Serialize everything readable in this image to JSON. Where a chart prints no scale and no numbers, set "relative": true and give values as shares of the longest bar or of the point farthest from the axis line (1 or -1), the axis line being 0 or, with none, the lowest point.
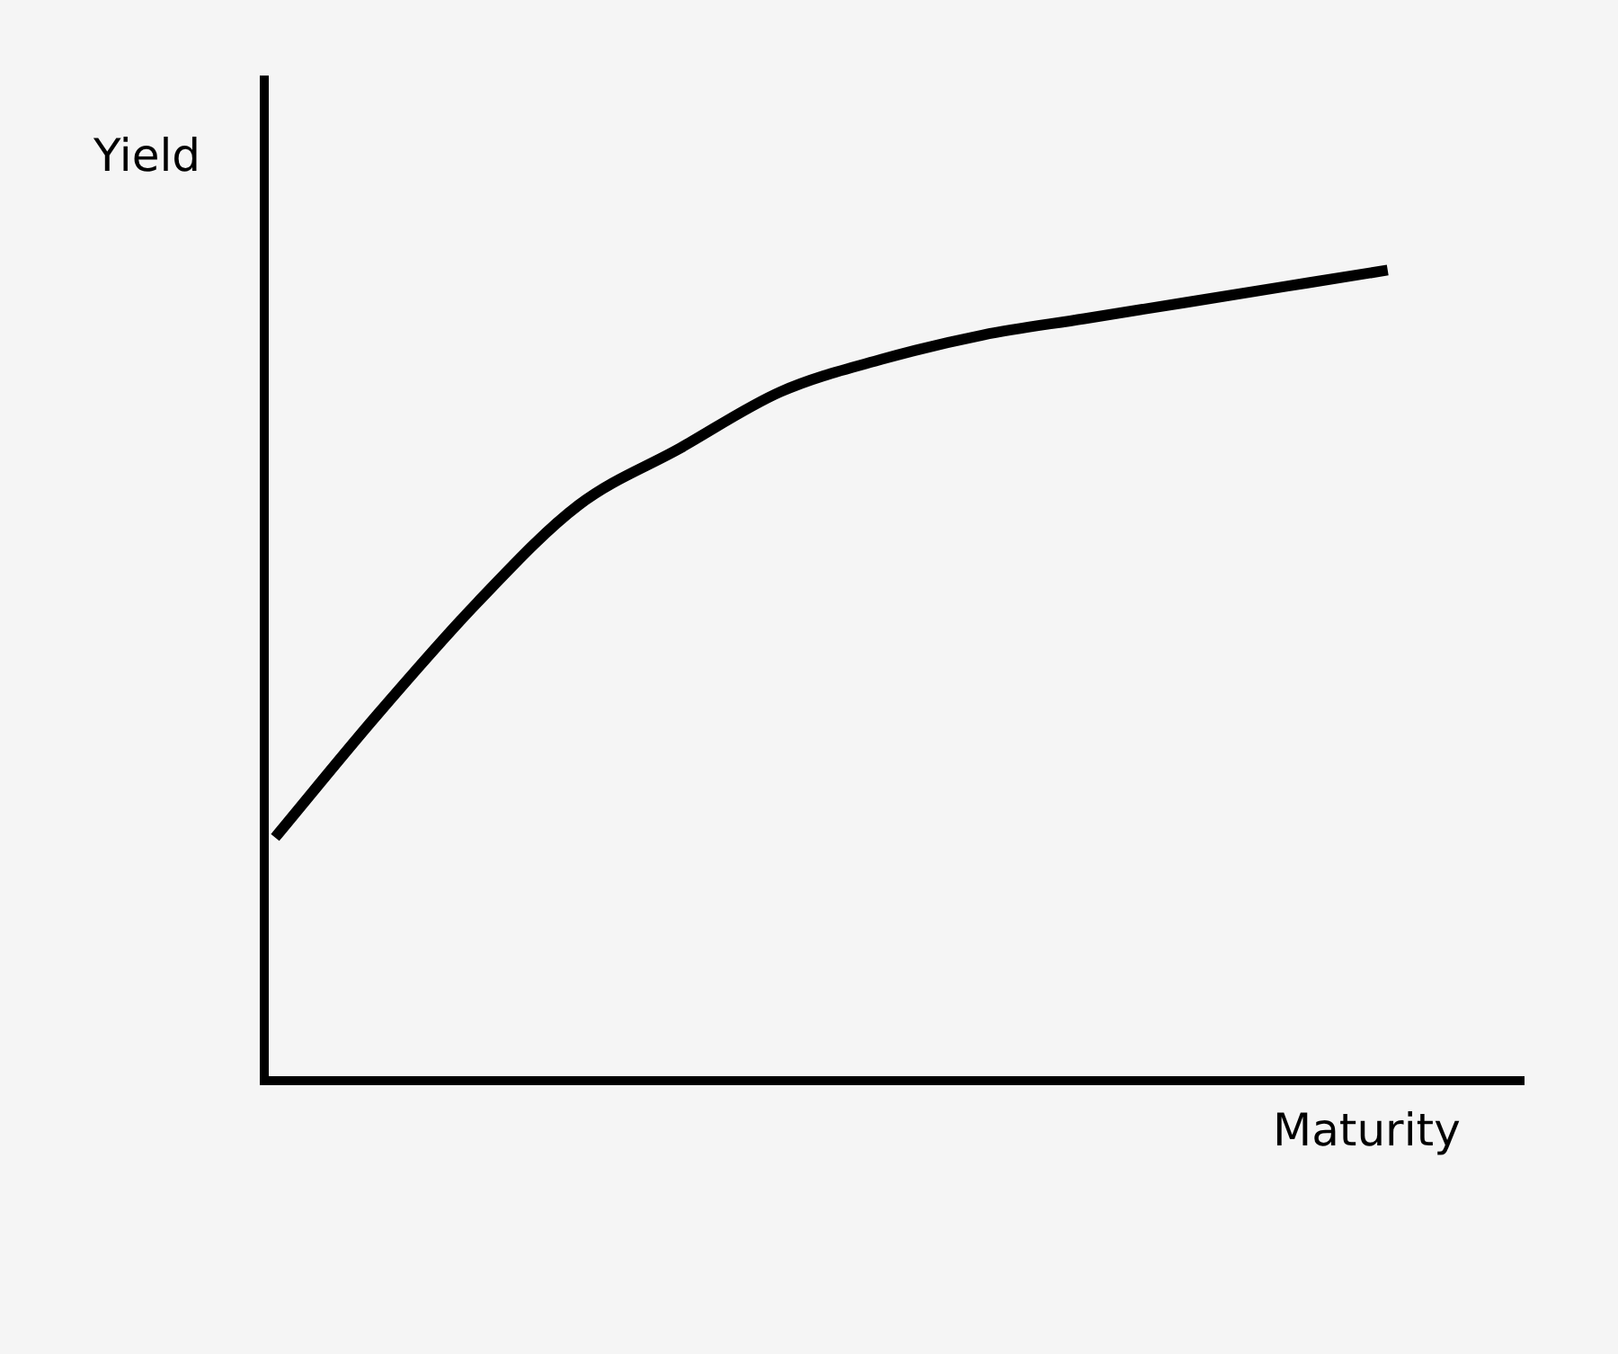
{
  "chart_data": {
    "type": "line",
    "xlabel": "Maturity",
    "ylabel": "Yield",
    "relative": true,
    "color": "#000000",
    "categories": [
      null,
      null,
      null,
      null,
      null,
      null,
      null,
      null,
      null,
      null,
      null,
      null
    ],
    "values": [
      0.3,
      0.45,
      0.59,
      0.71,
      0.78,
      0.85,
      0.89,
      0.92,
      0.94,
      0.96,
      0.98,
      1
    ]
  }
}
